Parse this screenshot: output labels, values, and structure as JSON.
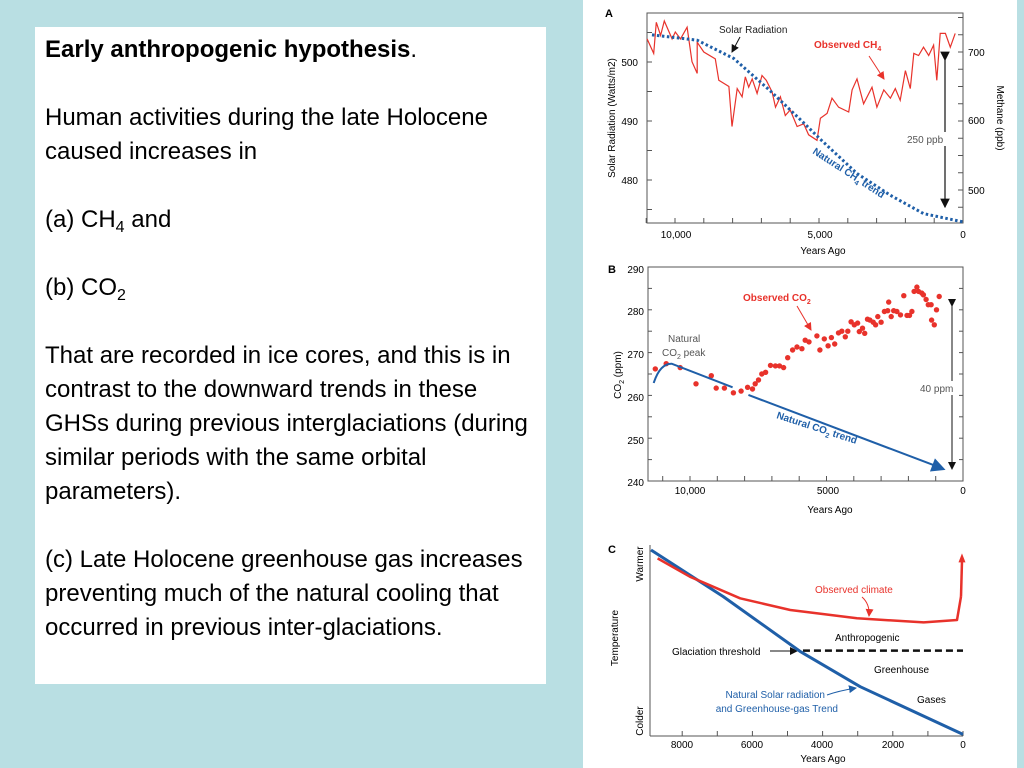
{
  "slide": {
    "title": "Early anthropogenic hypothesis",
    "title_suffix": ".",
    "intro": "Human activities during the late Holocene caused increases in",
    "item_a_prefix": "(a)  CH",
    "item_a_sub": "4",
    "item_a_suffix": " and",
    "item_b_prefix": "(b) CO",
    "item_b_sub": "2",
    "paragraph2": "That are recorded in ice cores, and this is in contrast to the downward trends in these GHSs during previous interglaciations (during similar periods with the same orbital parameters).",
    "paragraph3": "(c) Late Holocene greenhouse gas increases preventing much of the natural cooling that occurred in previous inter-glaciations."
  },
  "colors": {
    "background": "#b9dfe3",
    "observed": "#e8322b",
    "natural": "#1f5fa8",
    "annotation": "#000000"
  },
  "chart_data": [
    {
      "panel": "A",
      "type": "line",
      "xlabel": "Years Ago",
      "ylabel": "Solar Radiation (Watts/m2)",
      "ylabel_right": "Methane (ppb)",
      "xlim": [
        11000,
        0
      ],
      "ylim": [
        472.7,
        508.3
      ],
      "ylim_right": [
        450,
        755
      ],
      "x_ticks": [
        "10,000",
        "5,000",
        "0"
      ],
      "y_ticks": [
        "500",
        "490",
        "480"
      ],
      "y_ticks_right": [
        "700",
        "600",
        "500"
      ],
      "annotations": {
        "solar": "Solar Radiation",
        "observed_prefix": "Observed CH",
        "observed_sub": "4",
        "natural_prefix": "Natural CH",
        "natural_sub": "4",
        "natural_suffix": " trend",
        "range": "250 ppb"
      },
      "series": [
        {
          "name": "Observed CH4",
          "axis": "right",
          "style": "solid",
          "x": [
            10970,
            10740,
            10650,
            10500,
            10370,
            10100,
            9990,
            9810,
            9580,
            9410,
            9230,
            9230,
            9000,
            8600,
            8480,
            8130,
            8020,
            7840,
            7670,
            7560,
            7440,
            7320,
            7150,
            6980,
            6830,
            6630,
            6510,
            6340,
            6170,
            6000,
            5760,
            5530,
            5360,
            5070,
            4950,
            4720,
            4550,
            4320,
            3970,
            3850,
            3680,
            3450,
            3160,
            2990,
            2750,
            2520,
            2350,
            2180,
            2000,
            1830,
            1710,
            1540,
            1370,
            1190,
            1020,
            910,
            790,
            610,
            440,
            270
          ],
          "y": [
            719,
            698,
            743,
            724,
            745,
            719,
            729,
            719,
            736,
            686,
            669,
            714,
            700,
            690,
            659,
            650,
            592,
            647,
            635,
            664,
            649,
            661,
            640,
            666,
            659,
            642,
            620,
            635,
            608,
            616,
            592,
            596,
            580,
            572,
            604,
            611,
            633,
            620,
            613,
            645,
            661,
            625,
            649,
            620,
            645,
            633,
            647,
            630,
            673,
            647,
            698,
            695,
            707,
            695,
            710,
            659,
            727,
            727,
            707,
            727
          ]
        },
        {
          "name": "Solar Radiation",
          "axis": "left",
          "style": "dotted",
          "x": [
            10800,
            9230,
            7960,
            6690,
            5530,
            4950,
            3680,
            2520,
            1370,
            0
          ],
          "y": [
            504.6,
            503.7,
            500.6,
            495.1,
            489.7,
            486.9,
            481.1,
            477.4,
            474.3,
            472.9
          ]
        }
      ]
    },
    {
      "panel": "B",
      "type": "scatter",
      "xlabel": "Years Ago",
      "ylabel_prefix": "CO",
      "ylabel_sub": "2",
      "ylabel_suffix": " (ppm)",
      "xlim": [
        11500,
        0
      ],
      "ylim": [
        240,
        290
      ],
      "x_ticks": [
        "10,000",
        "5000",
        "0"
      ],
      "y_ticks": [
        "290",
        "280",
        "270",
        "260",
        "250",
        "240"
      ],
      "annotations": {
        "observed_prefix": "Observed CO",
        "observed_sub": "2",
        "peak_line1": "Natural",
        "peak_prefix": "CO",
        "peak_sub": "2",
        "peak_suffix": " peak",
        "natural_prefix": "Natural CO",
        "natural_sub": "2",
        "natural_suffix": " trend",
        "range": "40 ppm"
      },
      "series": [
        {
          "name": "Observed CO2",
          "style": "points",
          "x": [
            11270,
            10870,
            10360,
            9780,
            9220,
            9040,
            8740,
            8410,
            8130,
            7890,
            7710,
            7610,
            7490,
            7370,
            7230,
            7050,
            6870,
            6720,
            6570,
            6420,
            6240,
            6080,
            5900,
            5780,
            5640,
            5350,
            5240,
            5080,
            4940,
            4820,
            4700,
            4560,
            4440,
            4310,
            4220,
            4100,
            3980,
            3860,
            3800,
            3680,
            3600,
            3500,
            3410,
            3290,
            3200,
            3120,
            3000,
            2880,
            2760,
            2720,
            2630,
            2540,
            2420,
            2290,
            2170,
            2050,
            1960,
            1870,
            1790,
            1690,
            1630,
            1510,
            1450,
            1350,
            1270,
            1170,
            1150,
            1050,
            970,
            870
          ],
          "y": [
            266.2,
            267.4,
            266.5,
            262.7,
            264.6,
            261.7,
            261.7,
            260.6,
            261.0,
            261.9,
            261.5,
            262.7,
            263.6,
            265.0,
            265.4,
            267.0,
            266.9,
            266.9,
            266.5,
            268.8,
            270.6,
            271.3,
            270.9,
            272.9,
            272.5,
            273.9,
            270.6,
            273.2,
            271.6,
            273.5,
            272.0,
            274.6,
            275.0,
            273.7,
            275.0,
            277.2,
            276.5,
            276.9,
            274.9,
            275.7,
            274.5,
            277.8,
            277.6,
            277.1,
            276.5,
            278.4,
            277.1,
            279.6,
            279.8,
            281.8,
            278.4,
            279.8,
            279.6,
            278.8,
            283.3,
            278.7,
            278.7,
            279.6,
            284.3,
            285.3,
            284.3,
            283.9,
            283.5,
            282.4,
            281.2,
            281.2,
            277.6,
            276.5,
            280.0,
            283.1
          ]
        },
        {
          "name": "Natural CO2 trend",
          "style": "line",
          "x": [
            11330,
            11100,
            10870,
            10670,
            8440
          ],
          "y": [
            262.9,
            265.6,
            267.2,
            267.4,
            261.9
          ]
        },
        {
          "name": "Natural CO2 trend",
          "style": "arrow",
          "x": [
            7860,
            640
          ],
          "y": [
            260.1,
            242.6
          ]
        }
      ]
    },
    {
      "panel": "C",
      "type": "line",
      "xlabel": "Years Ago",
      "ylabel": "Temperature",
      "y_top_label": "Warmer",
      "y_bottom_label": "Colder",
      "xlim": [
        8900,
        0
      ],
      "ylim": [
        0,
        1
      ],
      "x_ticks": [
        "8000",
        "6000",
        "4000",
        "2000",
        "0"
      ],
      "annotations": {
        "observed": "Observed climate",
        "anthropogenic": "Anthropogenic",
        "threshold": "Glaciation threshold",
        "greenhouse": "Greenhouse",
        "gases": "Gases",
        "natural_line1": "Natural Solar radiation",
        "natural_line2": "and Greenhouse-gas Trend"
      },
      "series": [
        {
          "name": "Observed climate",
          "x": [
            8700,
            7780,
            6350,
            4920,
            3020,
            1120,
            170,
            57,
            29
          ],
          "y": [
            0.955,
            0.856,
            0.74,
            0.677,
            0.632,
            0.61,
            0.623,
            0.749,
            0.96
          ]
        },
        {
          "name": "Natural Solar radiation and Greenhouse-gas Trend",
          "x": [
            8890,
            6830,
            4640,
            2930,
            0
          ],
          "y": [
            1.0,
            0.749,
            0.454,
            0.264,
            0.007
          ]
        },
        {
          "name": "Glaciation threshold",
          "style": "dashed",
          "x": [
            4560,
            0
          ],
          "y": [
            0.458,
            0.458
          ]
        }
      ]
    }
  ]
}
